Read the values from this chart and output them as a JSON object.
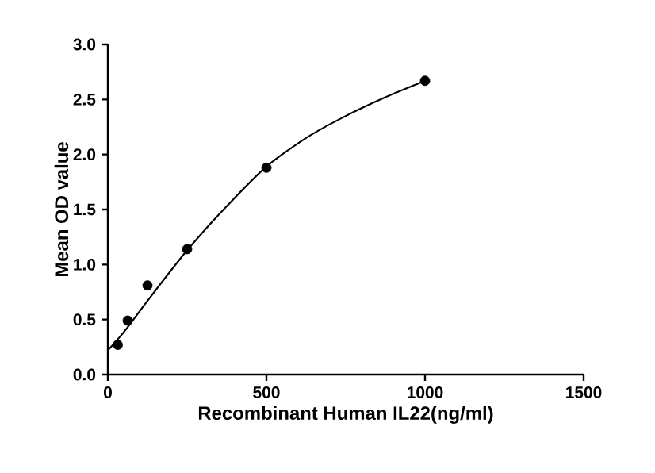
{
  "chart_data": {
    "type": "scatter",
    "xlabel": "Recombinant Human IL22(ng/ml)",
    "ylabel": "Mean OD value",
    "xlim": [
      0,
      1500
    ],
    "xticks": [
      0,
      500,
      1000,
      1500
    ],
    "ylim": [
      0,
      3.0
    ],
    "yticks": [
      {
        "value": 0,
        "label": "0.0"
      },
      {
        "value": 0.5,
        "label": "0.5"
      },
      {
        "value": 1,
        "label": "1.0"
      },
      {
        "value": 1.5,
        "label": "1.5"
      },
      {
        "value": 2,
        "label": "2.0"
      },
      {
        "value": 2.5,
        "label": "2.5"
      },
      {
        "value": 3,
        "label": "3.0"
      }
    ],
    "series": [
      {
        "marker": "circle",
        "color": "#000000",
        "x": [
          31.25,
          62.5,
          125,
          250,
          500,
          1000
        ],
        "values": [
          0.27,
          0.49,
          0.81,
          1.14,
          1.88,
          2.67
        ]
      },
      {
        "type": "line",
        "marker": "none",
        "line_style": "solid",
        "color": "#000000",
        "x": [
          0,
          31.25,
          62.5,
          125,
          250,
          375,
          500,
          625,
          750,
          875,
          1000
        ],
        "values": [
          0.22,
          0.32,
          0.43,
          0.67,
          1.13,
          1.53,
          1.89,
          2.15,
          2.35,
          2.52,
          2.67
        ]
      }
    ]
  }
}
